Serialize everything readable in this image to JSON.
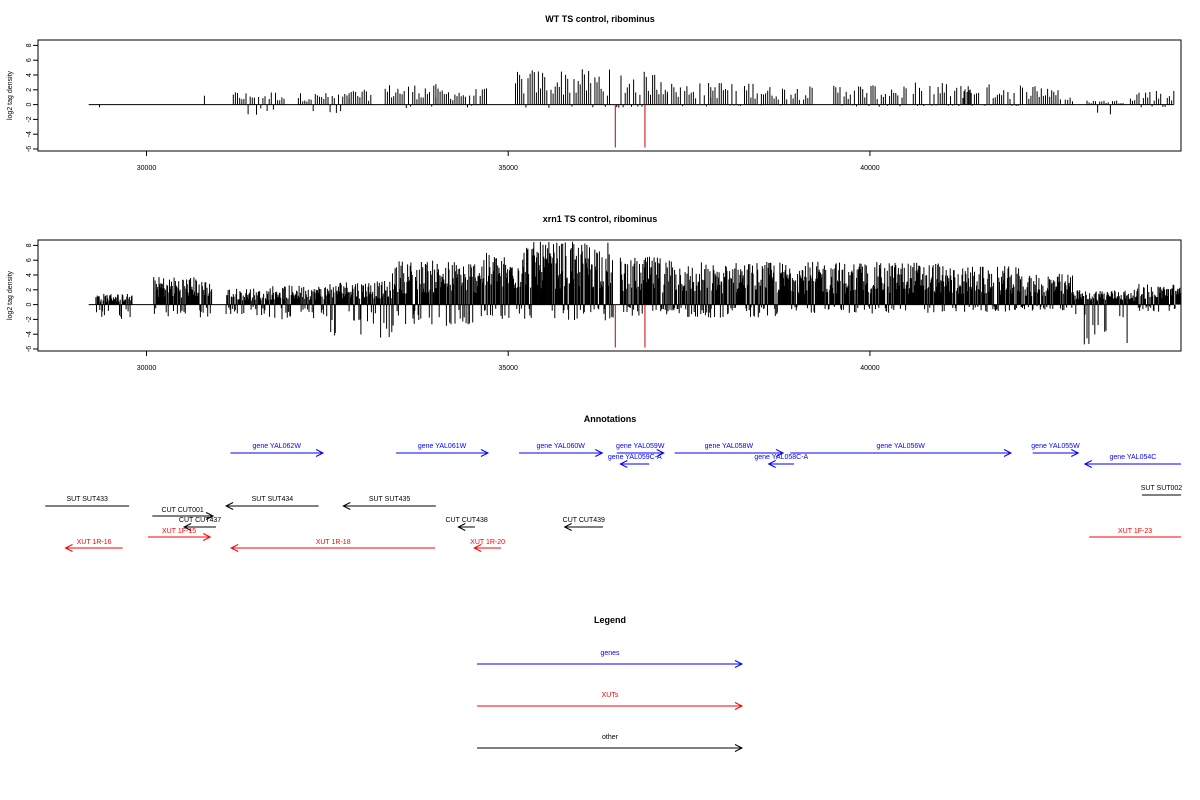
{
  "chart_data": [
    {
      "type": "bar",
      "title": "WT TS control, ribominus",
      "ylabel": "log2 tag density",
      "xlim": [
        28500,
        44300
      ],
      "ylim": [
        -6,
        9
      ],
      "x_ticks": [
        "30000",
        "35000",
        "40000"
      ],
      "y_ticks": [
        "-6",
        "-4",
        "-2",
        "0",
        "2",
        "4",
        "6",
        "8"
      ],
      "highlight_color": "#cc0000",
      "highlight_bars": [
        {
          "x": 36480,
          "y": -5.8
        },
        {
          "x": 36890,
          "y": -5.8
        }
      ],
      "segments": [
        {
          "x": [
            29350,
            29370
          ],
          "y": [
            -1.0,
            -0.8
          ]
        },
        {
          "x": [
            30800,
            30830
          ],
          "y": [
            1.2,
            -1.0
          ]
        },
        {
          "x": [
            31200,
            31900
          ],
          "y": [
            1.8,
            -1.5
          ]
        },
        {
          "x": [
            32100,
            32800
          ],
          "y": [
            1.6,
            -1.5
          ]
        },
        {
          "x": [
            32800,
            33100
          ],
          "y": [
            2.0,
            -0.8
          ]
        },
        {
          "x": [
            33300,
            34000
          ],
          "y": [
            2.8,
            -0.6
          ]
        },
        {
          "x": [
            34000,
            34700
          ],
          "y": [
            2.2,
            -0.4
          ]
        },
        {
          "x": [
            35100,
            36400
          ],
          "y": [
            4.8,
            -0.5
          ]
        },
        {
          "x": [
            36500,
            37200
          ],
          "y": [
            4.5,
            -0.5
          ]
        },
        {
          "x": [
            37200,
            37800
          ],
          "y": [
            3.0,
            -0.3
          ]
        },
        {
          "x": [
            37800,
            38500
          ],
          "y": [
            3.2,
            -0.2
          ]
        },
        {
          "x": [
            38500,
            39200
          ],
          "y": [
            2.5,
            -0.2
          ]
        },
        {
          "x": [
            39500,
            40500
          ],
          "y": [
            2.8,
            -0.3
          ]
        },
        {
          "x": [
            40600,
            41400
          ],
          "y": [
            3.0,
            -0.2
          ]
        },
        {
          "x": [
            41300,
            42600
          ],
          "y": [
            2.8,
            -0.2
          ]
        },
        {
          "x": [
            42600,
            42800
          ],
          "y": [
            1.0,
            0
          ]
        },
        {
          "x": [
            43000,
            43500
          ],
          "y": [
            0.6,
            -3.8
          ]
        },
        {
          "x": [
            43600,
            44200
          ],
          "y": [
            2.0,
            -0.6
          ]
        }
      ]
    },
    {
      "type": "bar",
      "title": "xrn1 TS control, ribominus",
      "ylabel": "log2 tag density",
      "xlim": [
        28500,
        44300
      ],
      "ylim": [
        -6,
        9
      ],
      "x_ticks": [
        "30000",
        "35000",
        "40000"
      ],
      "y_ticks": [
        "-6",
        "-4",
        "-2",
        "0",
        "2",
        "4",
        "6",
        "8"
      ],
      "highlight_color": "#cc0000",
      "highlight_bars": [
        {
          "x": 36480,
          "y": -5.8
        },
        {
          "x": 36890,
          "y": -5.8
        }
      ],
      "segments": [
        {
          "x": [
            29300,
            29800
          ],
          "y": [
            1.5,
            -2.0
          ]
        },
        {
          "x": [
            30100,
            30900
          ],
          "y": [
            3.8,
            -1.8
          ]
        },
        {
          "x": [
            31100,
            31700
          ],
          "y": [
            2.2,
            -1.5
          ]
        },
        {
          "x": [
            31700,
            32500
          ],
          "y": [
            2.6,
            -2.0
          ]
        },
        {
          "x": [
            32500,
            33400
          ],
          "y": [
            3.2,
            -4.5
          ]
        },
        {
          "x": [
            33400,
            34600
          ],
          "y": [
            6.0,
            -3.0
          ]
        },
        {
          "x": [
            34600,
            35200
          ],
          "y": [
            7.0,
            -2.0
          ]
        },
        {
          "x": [
            35200,
            36450
          ],
          "y": [
            8.5,
            -2.2
          ]
        },
        {
          "x": [
            36550,
            37300
          ],
          "y": [
            6.5,
            -1.5
          ]
        },
        {
          "x": [
            37300,
            39000
          ],
          "y": [
            5.8,
            -1.8
          ]
        },
        {
          "x": [
            39000,
            41000
          ],
          "y": [
            5.8,
            -1.2
          ]
        },
        {
          "x": [
            41000,
            42100
          ],
          "y": [
            5.2,
            -1.0
          ]
        },
        {
          "x": [
            42100,
            42800
          ],
          "y": [
            4.2,
            -0.8
          ]
        },
        {
          "x": [
            42800,
            43700
          ],
          "y": [
            2.0,
            -5.6
          ]
        },
        {
          "x": [
            43700,
            44300
          ],
          "y": [
            2.8,
            -1.0
          ]
        }
      ]
    }
  ],
  "annotations": {
    "title": "Annotations",
    "xlim": [
      28500,
      44300
    ],
    "features": [
      {
        "label": "gene YAL062W",
        "start": 31160,
        "end": 32440,
        "dir": "right",
        "type": "gene",
        "row": 1
      },
      {
        "label": "gene YAL061W",
        "start": 33450,
        "end": 34720,
        "dir": "right",
        "type": "gene",
        "row": 1
      },
      {
        "label": "gene YAL060W",
        "start": 35150,
        "end": 36300,
        "dir": "right",
        "type": "gene",
        "row": 1
      },
      {
        "label": "gene YAL059W",
        "start": 36500,
        "end": 37150,
        "dir": "right",
        "type": "gene",
        "row": 1
      },
      {
        "label": "gene YAL059C-A",
        "start": 36550,
        "end": 36950,
        "dir": "left",
        "type": "gene",
        "row": 2
      },
      {
        "label": "gene YAL058W",
        "start": 37300,
        "end": 38800,
        "dir": "right",
        "type": "gene",
        "row": 1
      },
      {
        "label": "gene YAL058C-A",
        "start": 38600,
        "end": 38950,
        "dir": "left",
        "type": "gene",
        "row": 2
      },
      {
        "label": "gene YAL056W",
        "start": 38900,
        "end": 41950,
        "dir": "right",
        "type": "gene",
        "row": 1
      },
      {
        "label": "gene YAL055W",
        "start": 42250,
        "end": 42880,
        "dir": "right",
        "type": "gene",
        "row": 1
      },
      {
        "label": "gene YAL054C",
        "start": 42970,
        "end": 44300,
        "dir": "left",
        "type": "gene",
        "row": 2
      },
      {
        "label": "SUT SUT433",
        "start": 28600,
        "end": 29760,
        "dir": "none",
        "type": "other",
        "row": 3
      },
      {
        "label": "SUT SUT434",
        "start": 31100,
        "end": 32380,
        "dir": "left",
        "type": "other",
        "row": 3
      },
      {
        "label": "SUT SUT435",
        "start": 32720,
        "end": 34000,
        "dir": "left",
        "type": "other",
        "row": 3
      },
      {
        "label": "SUT SUT002",
        "start": 43760,
        "end": 44300,
        "dir": "none",
        "type": "other",
        "row": 4
      },
      {
        "label": "CUT CUT001",
        "start": 30080,
        "end": 30920,
        "dir": "right",
        "type": "other",
        "row": 5
      },
      {
        "label": "CUT CUT437",
        "start": 30520,
        "end": 30960,
        "dir": "left",
        "type": "other",
        "row": 6
      },
      {
        "label": "CUT CUT438",
        "start": 34310,
        "end": 34540,
        "dir": "left",
        "type": "other",
        "row": 6
      },
      {
        "label": "CUT CUT439",
        "start": 35780,
        "end": 36310,
        "dir": "left",
        "type": "other",
        "row": 6
      },
      {
        "label": "XUT 1R-16",
        "start": 28880,
        "end": 29670,
        "dir": "left",
        "type": "xut",
        "row": 7
      },
      {
        "label": "XUT 1F-15",
        "start": 30020,
        "end": 30880,
        "dir": "right",
        "type": "xut",
        "row": 8
      },
      {
        "label": "XUT 1R-18",
        "start": 31170,
        "end": 33990,
        "dir": "left",
        "type": "xut",
        "row": 7
      },
      {
        "label": "XUT 1R-20",
        "start": 34530,
        "end": 34900,
        "dir": "left",
        "type": "xut",
        "row": 7
      },
      {
        "label": "XUT 1F-23",
        "start": 43030,
        "end": 44300,
        "dir": "none",
        "type": "xut",
        "row": 8
      }
    ]
  },
  "legend": {
    "title": "Legend",
    "items": [
      {
        "label": "genes",
        "color": "#0000ff"
      },
      {
        "label": "XUTs",
        "color": "#ff0000"
      },
      {
        "label": "other",
        "color": "#000000"
      }
    ]
  },
  "colors": {
    "gene": "#0000ff",
    "xut": "#ff0000",
    "other": "#000000"
  }
}
